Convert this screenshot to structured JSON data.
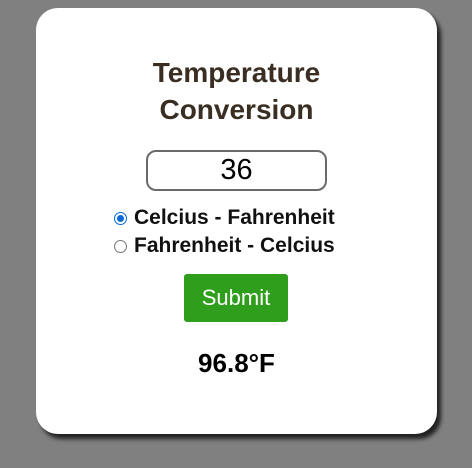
{
  "title": {
    "line1": "Temperature",
    "line2": "Conversion"
  },
  "input": {
    "value": "36"
  },
  "options": [
    {
      "label": "Celcius - Fahrenheit",
      "checked": true
    },
    {
      "label": "Fahrenheit - Celcius",
      "checked": false
    }
  ],
  "submit_label": "Submit",
  "result": "96.8°F",
  "colors": {
    "background": "#808080",
    "card": "#ffffff",
    "title": "#3a2d22",
    "submit": "#2f9e1d",
    "radio_checked": "#0a68d8"
  }
}
